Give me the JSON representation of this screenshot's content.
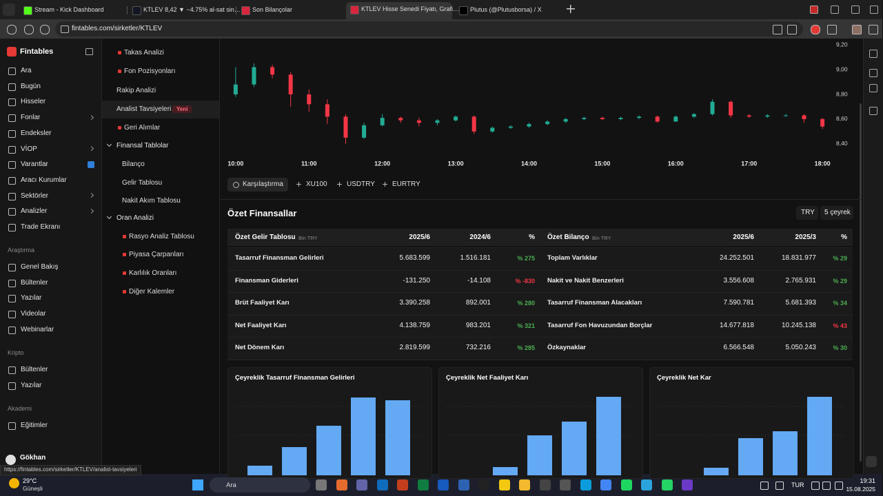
{
  "browser": {
    "tabs": [
      "Stream - Kick Dashboard",
      "KTLEV 8,42 ▼ −4.75% al-sat sin…",
      "Son Bilançolar",
      "KTLEV Hisse Senedi Fiyatı, Grafi…",
      "Plutus (@Plutusborsa) / X"
    ],
    "url": "fintables.com/sirketler/KTLEV",
    "status_url": "https://fintables.com/sirketler/KTLEV/analist-tavsiyeleri"
  },
  "sidebar": {
    "brand": "Fintables",
    "items": [
      "Ara",
      "Bugün",
      "Hisseler",
      "Fonlar",
      "Endeksler",
      "VİOP",
      "Varantlar",
      "Aracı Kurumlar",
      "Sektörler",
      "Analizler",
      "Trade Ekranı"
    ],
    "sections": [
      {
        "title": "Araştırma",
        "items": [
          "Genel Bakış",
          "Bültenler",
          "Yazılar",
          "Videolar",
          "Webinarlar"
        ]
      },
      {
        "title": "Kripto",
        "items": [
          "Bültenler",
          "Yazılar"
        ]
      },
      {
        "title": "Akademi",
        "items": [
          "Eğitimler"
        ]
      }
    ],
    "user": "Gökhan"
  },
  "submenu": {
    "top_items": [
      "Takas Analizi",
      "Fon Pozisyonları",
      "Rakip Analizi",
      "Analist Tavsiyeleri",
      "Geri Alımlar"
    ],
    "badge": "Yeni",
    "groups": [
      {
        "title": "Finansal Tablolar",
        "items": [
          "Bilanço",
          "Gelir Tablosu",
          "Nakit Akım Tablosu"
        ]
      },
      {
        "title": "Oran Analizi",
        "items": [
          "Rasyo Analiz Tablosu",
          "Piyasa Çarpanları",
          "Karlılık Oranları",
          "Diğer Kalemler"
        ]
      }
    ]
  },
  "compare_buttons": [
    "Karşılaştırma",
    "XU100",
    "USDTRY",
    "EURTRY"
  ],
  "summary": {
    "title": "Özet Finansallar",
    "currency": "TRY",
    "period": "5 çeyrek",
    "tables": [
      {
        "title": "Özet Gelir Tablosu",
        "unit": "Bin TRY",
        "columns": [
          "2025/6",
          "2024/6",
          "%"
        ],
        "rows": [
          {
            "label": "Tasarruf Finansman Gelirleri",
            "values": [
              "5.683.599",
              "1.516.181"
            ],
            "pct": "% 275",
            "pct_color": "#4caf50"
          },
          {
            "label": "Finansman Giderleri",
            "values": [
              "-131.250",
              "-14.108"
            ],
            "pct": "% -830",
            "pct_color": "#f23645"
          },
          {
            "label": "Brüt Faaliyet Karı",
            "values": [
              "3.390.258",
              "892.001"
            ],
            "pct": "% 280",
            "pct_color": "#4caf50"
          },
          {
            "label": "Net Faaliyet Karı",
            "values": [
              "4.138.759",
              "983.201"
            ],
            "pct": "% 321",
            "pct_color": "#4caf50"
          },
          {
            "label": "Net Dönem Karı",
            "values": [
              "2.819.599",
              "732.216"
            ],
            "pct": "% 285",
            "pct_color": "#4caf50"
          }
        ]
      },
      {
        "title": "Özet Bilanço",
        "unit": "Bin TRY",
        "columns": [
          "2025/6",
          "2025/3",
          "%"
        ],
        "rows": [
          {
            "label": "Toplam Varlıklar",
            "values": [
              "24.252.501",
              "18.831.977"
            ],
            "pct": "% 29",
            "pct_color": "#4caf50"
          },
          {
            "label": "Nakit ve Nakit Benzerleri",
            "values": [
              "3.556.608",
              "2.765.931"
            ],
            "pct": "% 29",
            "pct_color": "#4caf50"
          },
          {
            "label": "Tasarruf Finansman Alacakları",
            "values": [
              "7.590.781",
              "5.681.393"
            ],
            "pct": "% 34",
            "pct_color": "#4caf50"
          },
          {
            "label": "Tasarruf Fon Havuzundan Borçlar",
            "values": [
              "14.677.818",
              "10.245.138"
            ],
            "pct": "% 43",
            "pct_color": "#f23645"
          },
          {
            "label": "Özkaynaklar",
            "values": [
              "6.566.548",
              "5.050.243"
            ],
            "pct": "% 30",
            "pct_color": "#4caf50"
          }
        ]
      }
    ]
  },
  "chart_data": [
    {
      "type": "candlestick",
      "x": [
        "10:00",
        "10:15",
        "10:30",
        "10:45",
        "11:00",
        "11:15",
        "11:30",
        "11:45",
        "12:00",
        "12:15",
        "12:30",
        "12:45",
        "13:00",
        "13:15",
        "13:30",
        "13:45",
        "14:00",
        "14:15",
        "14:30",
        "14:45",
        "15:00",
        "15:15",
        "15:30",
        "15:45",
        "16:00",
        "16:15",
        "16:30",
        "16:45",
        "17:00",
        "17:15",
        "17:30",
        "17:45",
        "18:00"
      ],
      "open": [
        8.8,
        8.88,
        9.02,
        8.96,
        8.8,
        8.72,
        8.62,
        8.45,
        8.55,
        8.61,
        8.59,
        8.57,
        8.59,
        8.62,
        8.5,
        8.53,
        8.54,
        8.56,
        8.58,
        8.6,
        8.61,
        8.6,
        8.61,
        8.62,
        8.58,
        8.62,
        8.64,
        8.74,
        8.63,
        8.62,
        8.63,
        8.63,
        8.6
      ],
      "high": [
        9.02,
        9.05,
        9.04,
        8.98,
        8.84,
        8.76,
        8.64,
        8.57,
        8.64,
        8.62,
        8.61,
        8.6,
        8.63,
        8.63,
        8.54,
        8.55,
        8.57,
        8.59,
        8.61,
        8.62,
        8.62,
        8.62,
        8.63,
        8.63,
        8.63,
        8.65,
        8.76,
        8.75,
        8.64,
        8.64,
        8.64,
        8.64,
        8.61
      ],
      "low": [
        8.78,
        8.86,
        8.93,
        8.7,
        8.66,
        8.56,
        8.4,
        8.44,
        8.54,
        8.57,
        8.54,
        8.55,
        8.58,
        8.48,
        8.49,
        8.52,
        8.53,
        8.55,
        8.57,
        8.59,
        8.59,
        8.59,
        8.6,
        8.57,
        8.58,
        8.61,
        8.63,
        8.61,
        8.61,
        8.61,
        8.62,
        8.57,
        8.52
      ],
      "close": [
        8.88,
        9.02,
        8.96,
        8.8,
        8.72,
        8.62,
        8.45,
        8.55,
        8.61,
        8.59,
        8.57,
        8.59,
        8.62,
        8.5,
        8.53,
        8.54,
        8.56,
        8.58,
        8.6,
        8.61,
        8.6,
        8.61,
        8.62,
        8.58,
        8.62,
        8.64,
        8.74,
        8.63,
        8.62,
        8.63,
        8.63,
        8.6,
        8.54
      ],
      "up_color": "#22ab94",
      "down_color": "#f23645",
      "xlim": [
        "09:55",
        "18:05"
      ],
      "xticks": [
        "10:00",
        "11:00",
        "12:00",
        "13:00",
        "14:00",
        "15:00",
        "16:00",
        "17:00",
        "18:00"
      ],
      "ylim": [
        8.36,
        9.24
      ],
      "yticks": [
        {
          "value": 8.4,
          "label": "8,40"
        },
        {
          "value": 8.6,
          "label": "8,60"
        },
        {
          "value": 8.8,
          "label": "8,80"
        },
        {
          "value": 9.0,
          "label": "9,00"
        },
        {
          "value": 9.2,
          "label": "9,20"
        }
      ]
    },
    {
      "type": "bar",
      "title": "Çeyreklik Tasarruf Finansman Gelirleri",
      "values": [
        14,
        41,
        72,
        113,
        109
      ],
      "color": "#64a9f4",
      "ylim": [
        0,
        130
      ]
    },
    {
      "type": "bar",
      "title": "Çeyreklik Net Faaliyet Karı",
      "values": [
        null,
        12,
        58,
        78,
        114
      ],
      "color": "#64a9f4",
      "ylim": [
        0,
        130
      ]
    },
    {
      "type": "bar",
      "title": "Çeyreklik Net Kar",
      "values": [
        null,
        11,
        54,
        64,
        114
      ],
      "color": "#64a9f4",
      "ylim": [
        0,
        130
      ]
    }
  ],
  "taskbar": {
    "temperature": "29°C",
    "weather": "Güneşli",
    "search": "Ara",
    "language": "TUR",
    "time": "19:31",
    "date": "15.08.2025"
  }
}
